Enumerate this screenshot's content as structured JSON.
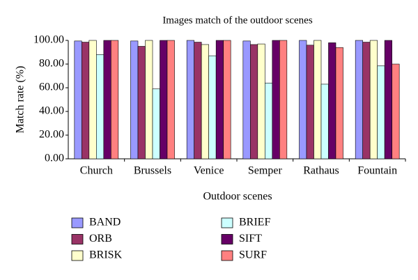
{
  "chart_data": {
    "type": "bar",
    "title": "Images match of the outdoor scenes",
    "x_label": "Outdoor scenes",
    "y_label": "Match rate (%)",
    "categories": [
      "Church",
      "Brussels",
      "Venice",
      "Semper",
      "Rathaus",
      "Fountain"
    ],
    "series": [
      {
        "name": "BAND",
        "color": "#9999ff",
        "values": [
          99.5,
          99.5,
          100,
          99.5,
          100,
          100
        ]
      },
      {
        "name": "ORB",
        "color": "#993366",
        "values": [
          98.5,
          95,
          98.5,
          96.5,
          96,
          98.5
        ]
      },
      {
        "name": "BRISK",
        "color": "#ffffcc",
        "values": [
          100,
          100,
          96.5,
          97,
          100,
          100
        ]
      },
      {
        "name": "BRIEF",
        "color": "#ccffff",
        "values": [
          88,
          59,
          87,
          64,
          63,
          78.5
        ]
      },
      {
        "name": "SIFT",
        "color": "#660066",
        "values": [
          100,
          100,
          100,
          100,
          98,
          100
        ]
      },
      {
        "name": "SURF",
        "color": "#ff8080",
        "values": [
          100,
          100,
          100,
          100,
          94,
          80
        ]
      }
    ],
    "ylim": [
      0,
      100
    ],
    "yticks": [
      {
        "value": 0,
        "label": "0.00"
      },
      {
        "value": 20,
        "label": "20.00"
      },
      {
        "value": 40,
        "label": "40.00"
      },
      {
        "value": 60,
        "label": "60.00"
      },
      {
        "value": 80,
        "label": "80.00"
      },
      {
        "value": 100,
        "label": "100.00"
      }
    ]
  }
}
